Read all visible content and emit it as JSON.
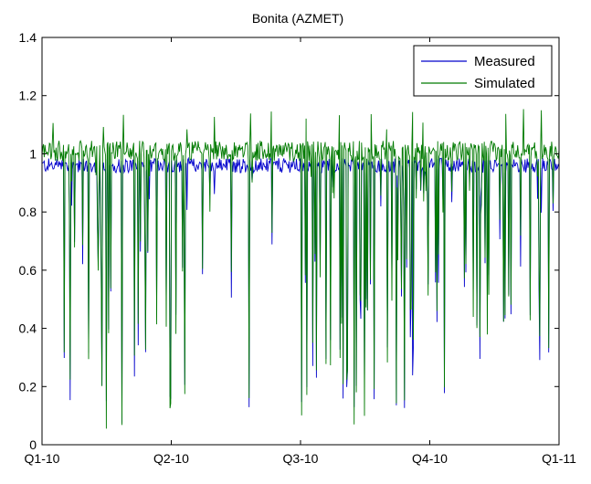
{
  "chart_data": {
    "type": "line",
    "title": "Bonita (AZMET)",
    "xlabel": "",
    "ylabel": "",
    "x_ticks": [
      "Q1-10",
      "Q2-10",
      "Q3-10",
      "Q4-10",
      "Q1-11"
    ],
    "y_ticks": [
      "0",
      "0.2",
      "0.4",
      "0.6",
      "0.8",
      "1",
      "1.2",
      "1.4"
    ],
    "ylim": [
      0,
      1.4
    ],
    "grid": false,
    "legend_position": "top-right",
    "series": [
      {
        "name": "Measured",
        "color": "#0000cc"
      },
      {
        "name": "Simulated",
        "color": "#007a00"
      }
    ]
  }
}
